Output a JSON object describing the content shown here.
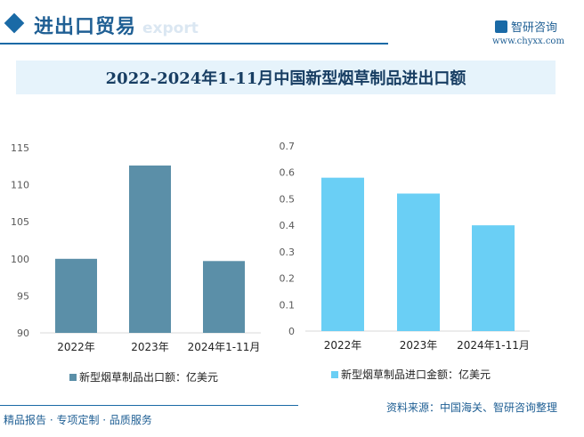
{
  "header": {
    "section_title": "进出口贸易",
    "ghost_text": "export",
    "logo_text": "智研咨询",
    "url": "www.chyxx.com"
  },
  "title": "2022-2024年1-11月中国新型烟草制品进出口额",
  "chart_data": [
    {
      "type": "bar",
      "categories": [
        "2022年",
        "2023年",
        "2024年1-11月"
      ],
      "series": [
        {
          "name": "新型烟草制品出口额：亿美元",
          "values": [
            100.0,
            112.6,
            99.7
          ],
          "color": "#5b8fa8"
        }
      ],
      "ylim": [
        90,
        115
      ],
      "yticks": [
        "90",
        "95",
        "100",
        "105",
        "110",
        "115"
      ],
      "legend": "bottom",
      "grid": false
    },
    {
      "type": "bar",
      "categories": [
        "2022年",
        "2023年",
        "2024年1-11月"
      ],
      "series": [
        {
          "name": "新型烟草制品进口金额：亿美元",
          "values": [
            0.58,
            0.52,
            0.4
          ],
          "color": "#6acff5"
        }
      ],
      "ylim": [
        0,
        0.7
      ],
      "yticks": [
        "0",
        "0.1",
        "0.2",
        "0.3",
        "0.4",
        "0.5",
        "0.6",
        "0.7"
      ],
      "legend": "bottom",
      "grid": false
    }
  ],
  "footer": {
    "left": "精品报告 · 专项定制 · 品质服务",
    "source": "资料来源：中国海关、智研咨询整理"
  }
}
